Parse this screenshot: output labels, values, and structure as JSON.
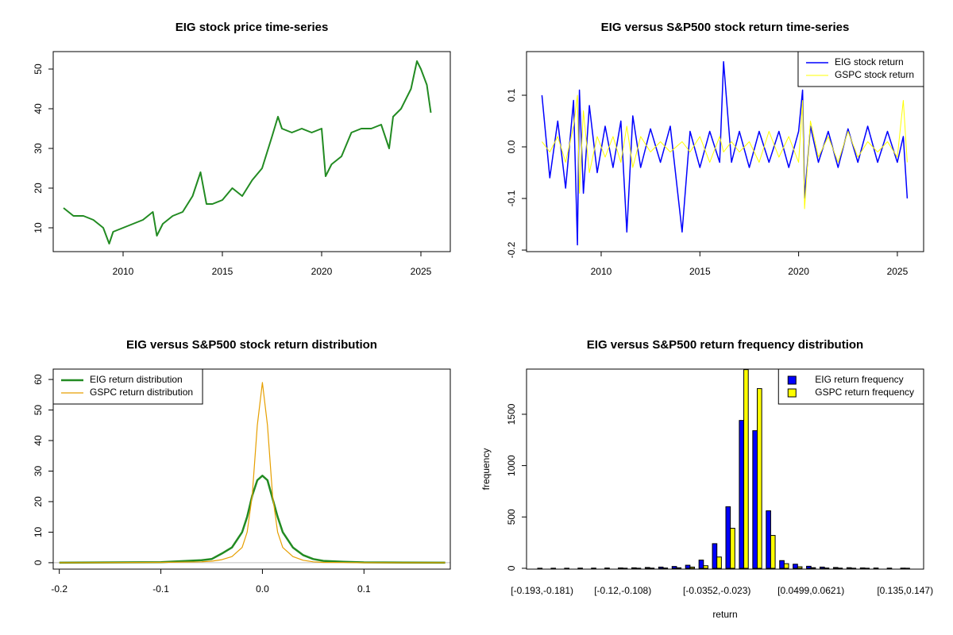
{
  "chart_data": [
    {
      "type": "line",
      "title": "EIG stock price time-series",
      "color": "#228b22",
      "x": [
        2007.0,
        2007.5,
        2008.0,
        2008.5,
        2009.0,
        2009.3,
        2009.5,
        2010.0,
        2010.5,
        2011.0,
        2011.5,
        2011.7,
        2012.0,
        2012.5,
        2013.0,
        2013.5,
        2013.9,
        2014.2,
        2014.5,
        2015.0,
        2015.5,
        2016.0,
        2016.5,
        2017.0,
        2017.5,
        2017.8,
        2018.0,
        2018.5,
        2019.0,
        2019.5,
        2020.0,
        2020.2,
        2020.5,
        2021.0,
        2021.5,
        2022.0,
        2022.5,
        2023.0,
        2023.4,
        2023.6,
        2024.0,
        2024.5,
        2024.8,
        2025.0,
        2025.3,
        2025.5
      ],
      "values": [
        15,
        13,
        13,
        12,
        10,
        6,
        9,
        10,
        11,
        12,
        14,
        8,
        11,
        13,
        14,
        18,
        24,
        16,
        16,
        17,
        20,
        18,
        22,
        25,
        33,
        38,
        35,
        34,
        35,
        34,
        35,
        23,
        26,
        28,
        34,
        35,
        35,
        36,
        30,
        38,
        40,
        45,
        52,
        50,
        46,
        39
      ],
      "xlim": [
        2006.48,
        2026.48
      ],
      "xticks": [
        2010,
        2015,
        2020,
        2025
      ],
      "ylim": [
        4,
        54.4
      ],
      "yticks": [
        10,
        20,
        30,
        40,
        50
      ]
    },
    {
      "type": "line",
      "title": "EIG versus S&P500 stock return time-series",
      "legend": "topright",
      "x": [
        2007.0,
        2007.4,
        2007.8,
        2008.2,
        2008.6,
        2008.8,
        2008.9,
        2009.1,
        2009.4,
        2009.8,
        2010.2,
        2010.6,
        2011.0,
        2011.3,
        2011.6,
        2012.0,
        2012.5,
        2013.0,
        2013.5,
        2014.1,
        2014.5,
        2015.0,
        2015.5,
        2016.0,
        2016.2,
        2016.6,
        2017.0,
        2017.5,
        2018.0,
        2018.5,
        2019.0,
        2019.5,
        2020.0,
        2020.2,
        2020.3,
        2020.6,
        2021.0,
        2021.5,
        2022.0,
        2022.5,
        2023.0,
        2023.5,
        2024.0,
        2024.5,
        2025.0,
        2025.3,
        2025.5
      ],
      "series": [
        {
          "name": "EIG stock return",
          "color": "#0000ff",
          "values": [
            0.1,
            -0.06,
            0.05,
            -0.08,
            0.09,
            -0.19,
            0.11,
            -0.09,
            0.08,
            -0.05,
            0.04,
            -0.04,
            0.05,
            -0.165,
            0.06,
            -0.04,
            0.035,
            -0.03,
            0.04,
            -0.165,
            0.03,
            -0.04,
            0.03,
            -0.03,
            0.165,
            -0.03,
            0.03,
            -0.04,
            0.03,
            -0.03,
            0.03,
            -0.04,
            0.03,
            0.11,
            -0.1,
            0.04,
            -0.03,
            0.03,
            -0.04,
            0.035,
            -0.03,
            0.04,
            -0.03,
            0.03,
            -0.03,
            0.02,
            -0.1
          ]
        },
        {
          "name": "GSPC stock return",
          "color": "#ffff00",
          "values": [
            0.01,
            -0.01,
            0.02,
            -0.03,
            0.04,
            0.1,
            -0.09,
            0.07,
            -0.05,
            0.02,
            -0.02,
            0.02,
            -0.03,
            0.04,
            -0.04,
            0.02,
            -0.01,
            0.01,
            -0.01,
            0.01,
            -0.01,
            0.02,
            -0.03,
            0.02,
            -0.01,
            0.01,
            -0.01,
            0.01,
            -0.03,
            0.03,
            -0.02,
            0.02,
            -0.03,
            0.09,
            -0.12,
            0.05,
            -0.02,
            0.02,
            -0.03,
            0.03,
            -0.02,
            0.01,
            -0.01,
            0.01,
            -0.02,
            0.09,
            -0.03
          ]
        }
      ],
      "xlim": [
        2006.22,
        2026.33
      ],
      "xticks": [
        2010,
        2015,
        2020,
        2025
      ],
      "ylim": [
        -0.203,
        0.1846
      ],
      "yticks": [
        0.1,
        {
          "value": 0,
          "label": "0.0"
        },
        -0.1,
        -0.2
      ]
    },
    {
      "type": "line",
      "title": "EIG versus S&P500 stock return distribution",
      "legend": "topleft",
      "x": [
        -0.2,
        -0.1,
        -0.08,
        -0.06,
        -0.05,
        -0.04,
        -0.03,
        -0.02,
        -0.015,
        -0.01,
        -0.005,
        0,
        0.005,
        0.01,
        0.015,
        0.02,
        0.03,
        0.04,
        0.05,
        0.06,
        0.08,
        0.1,
        0.18
      ],
      "series": [
        {
          "name": "EIG return distribution",
          "color": "#228b22",
          "values": [
            0,
            0.2,
            0.5,
            0.8,
            1.2,
            3,
            5,
            10,
            15,
            22,
            27,
            28.5,
            27,
            21,
            15,
            10,
            5,
            2.5,
            1.2,
            0.6,
            0.3,
            0.1,
            0
          ]
        },
        {
          "name": "GSPC return distribution",
          "color": "#e69f00",
          "values": [
            0,
            0.1,
            0.2,
            0.3,
            0.5,
            1,
            2,
            5,
            10,
            22,
            45,
            59,
            45,
            22,
            10,
            5,
            2,
            0.8,
            0.3,
            0.1,
            0.05,
            0,
            0
          ]
        }
      ],
      "xlim": [
        -0.206,
        0.185
      ],
      "xticks": [
        -0.2,
        -0.1,
        {
          "value": 0,
          "label": "0.0"
        },
        0.1
      ],
      "ylim": [
        -2.1,
        63.4
      ],
      "yticks": [
        0,
        10,
        20,
        30,
        40,
        50,
        60
      ]
    },
    {
      "type": "bar",
      "title": "EIG versus S&P500 return frequency distribution",
      "legend": "topright",
      "xlabel": "return",
      "ylabel": "frequency",
      "categories": [
        "[-0.193,-0.181)",
        null,
        null,
        null,
        null,
        null,
        "[-0.12,-0.108)",
        null,
        null,
        null,
        null,
        null,
        null,
        "[-0.0352,-0.023)",
        null,
        null,
        null,
        null,
        null,
        null,
        "[0.0499,0.0621)",
        null,
        null,
        null,
        null,
        null,
        null,
        "[0.135,0.147)"
      ],
      "series": [
        {
          "name": "EIG return frequency",
          "color": "#0000ff",
          "values": [
            1,
            1,
            1,
            2,
            2,
            3,
            4,
            5,
            8,
            12,
            18,
            30,
            80,
            240,
            600,
            1440,
            1340,
            560,
            75,
            40,
            20,
            12,
            8,
            6,
            4,
            3,
            2,
            2
          ]
        },
        {
          "name": "GSPC return frequency",
          "color": "#ffff00",
          "values": [
            0,
            0,
            0,
            0,
            0,
            0,
            1,
            1,
            2,
            3,
            5,
            12,
            25,
            110,
            390,
            1935,
            1750,
            320,
            45,
            15,
            6,
            3,
            2,
            1,
            1,
            0,
            0,
            1
          ]
        }
      ],
      "ylim": [
        -8,
        1940
      ],
      "yticks": [
        0,
        500,
        1000,
        1500
      ]
    }
  ]
}
